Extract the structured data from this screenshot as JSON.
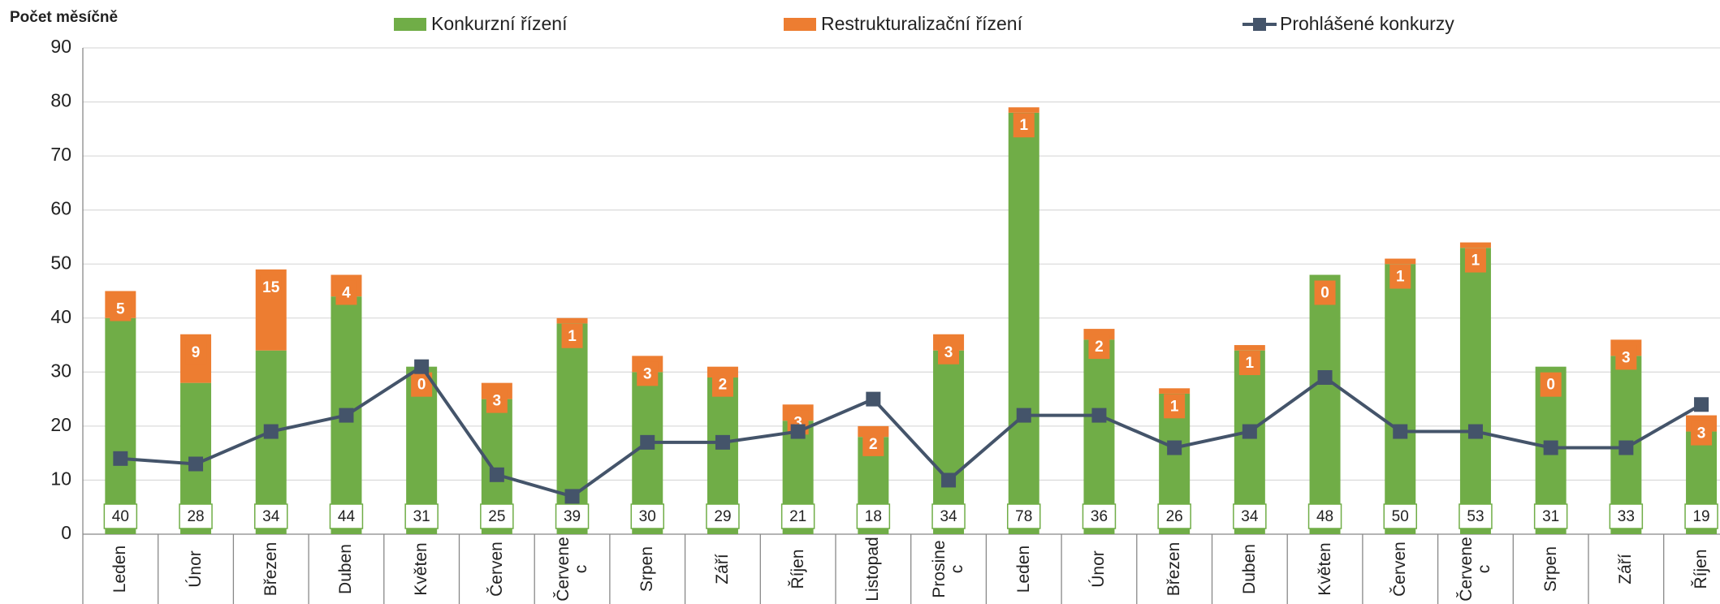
{
  "chart_data": {
    "type": "bar_line",
    "y_axis_label": "Počet měsíčně",
    "categories": [
      "Leden",
      "Únor",
      "Březen",
      "Duben",
      "Květen",
      "Červen",
      "Červenec",
      "Srpen",
      "Září",
      "Říjen",
      "Listopad",
      "Prosinec",
      "Leden",
      "Únor",
      "Březen",
      "Duben",
      "Květen",
      "Červen",
      "Červenec",
      "Srpen",
      "Září",
      "Říjen"
    ],
    "series": [
      {
        "name": "Konkurzní řízení",
        "color": "#70ad47",
        "kind": "stacked-bar",
        "values": [
          40,
          28,
          34,
          44,
          31,
          25,
          39,
          30,
          29,
          21,
          18,
          34,
          78,
          36,
          26,
          34,
          48,
          50,
          53,
          31,
          33,
          19
        ]
      },
      {
        "name": "Restrukturalizační řízení",
        "color": "#ed7d31",
        "kind": "stacked-bar",
        "values": [
          5,
          9,
          15,
          4,
          0,
          3,
          1,
          3,
          2,
          3,
          2,
          3,
          1,
          2,
          1,
          1,
          0,
          1,
          1,
          0,
          3,
          3
        ]
      },
      {
        "name": "Prohlášené konkurzy",
        "color": "#44546a",
        "kind": "line",
        "values": [
          14,
          13,
          19,
          22,
          31,
          11,
          7,
          17,
          17,
          19,
          25,
          10,
          22,
          22,
          16,
          19,
          29,
          19,
          19,
          16,
          16,
          24
        ]
      }
    ],
    "ylim": [
      0,
      90
    ],
    "yticks": [
      0,
      10,
      20,
      30,
      40,
      50,
      60,
      70,
      80,
      90
    ],
    "grid": true,
    "legend": "top"
  }
}
